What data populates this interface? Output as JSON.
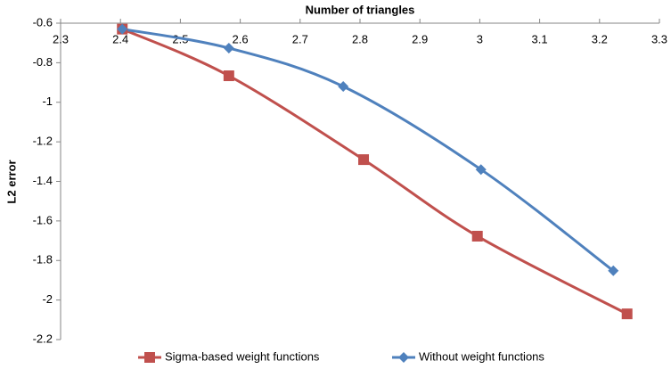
{
  "chart_data": {
    "type": "scatter",
    "xlabel": "Number of triangles",
    "ylabel": "L2 error",
    "xlim": [
      2.3,
      3.3
    ],
    "xticks": [
      2.3,
      2.4,
      2.5,
      2.6,
      2.7,
      2.8,
      2.9,
      3,
      3.1,
      3.2,
      3.3
    ],
    "ylim": [
      -2.2,
      -0.6
    ],
    "yticks": [
      -2.2,
      -2,
      -1.8,
      -1.6,
      -1.4,
      -1.2,
      -1,
      -0.8,
      -0.6
    ],
    "legend": "bottom",
    "series": [
      {
        "name": "Sigma-based weight functions",
        "color": "#c0504d",
        "marker": "square",
        "x": [
          2.403,
          2.581,
          2.806,
          2.996,
          3.246
        ],
        "values": [
          -0.63,
          -0.866,
          -1.29,
          -1.677,
          -2.07
        ]
      },
      {
        "name": "Without weight functions",
        "color": "#4f81bd",
        "marker": "diamond",
        "x": [
          2.403,
          2.581,
          2.772,
          3.002,
          3.223
        ],
        "values": [
          -0.63,
          -0.726,
          -0.92,
          -1.34,
          -1.852
        ]
      }
    ]
  }
}
